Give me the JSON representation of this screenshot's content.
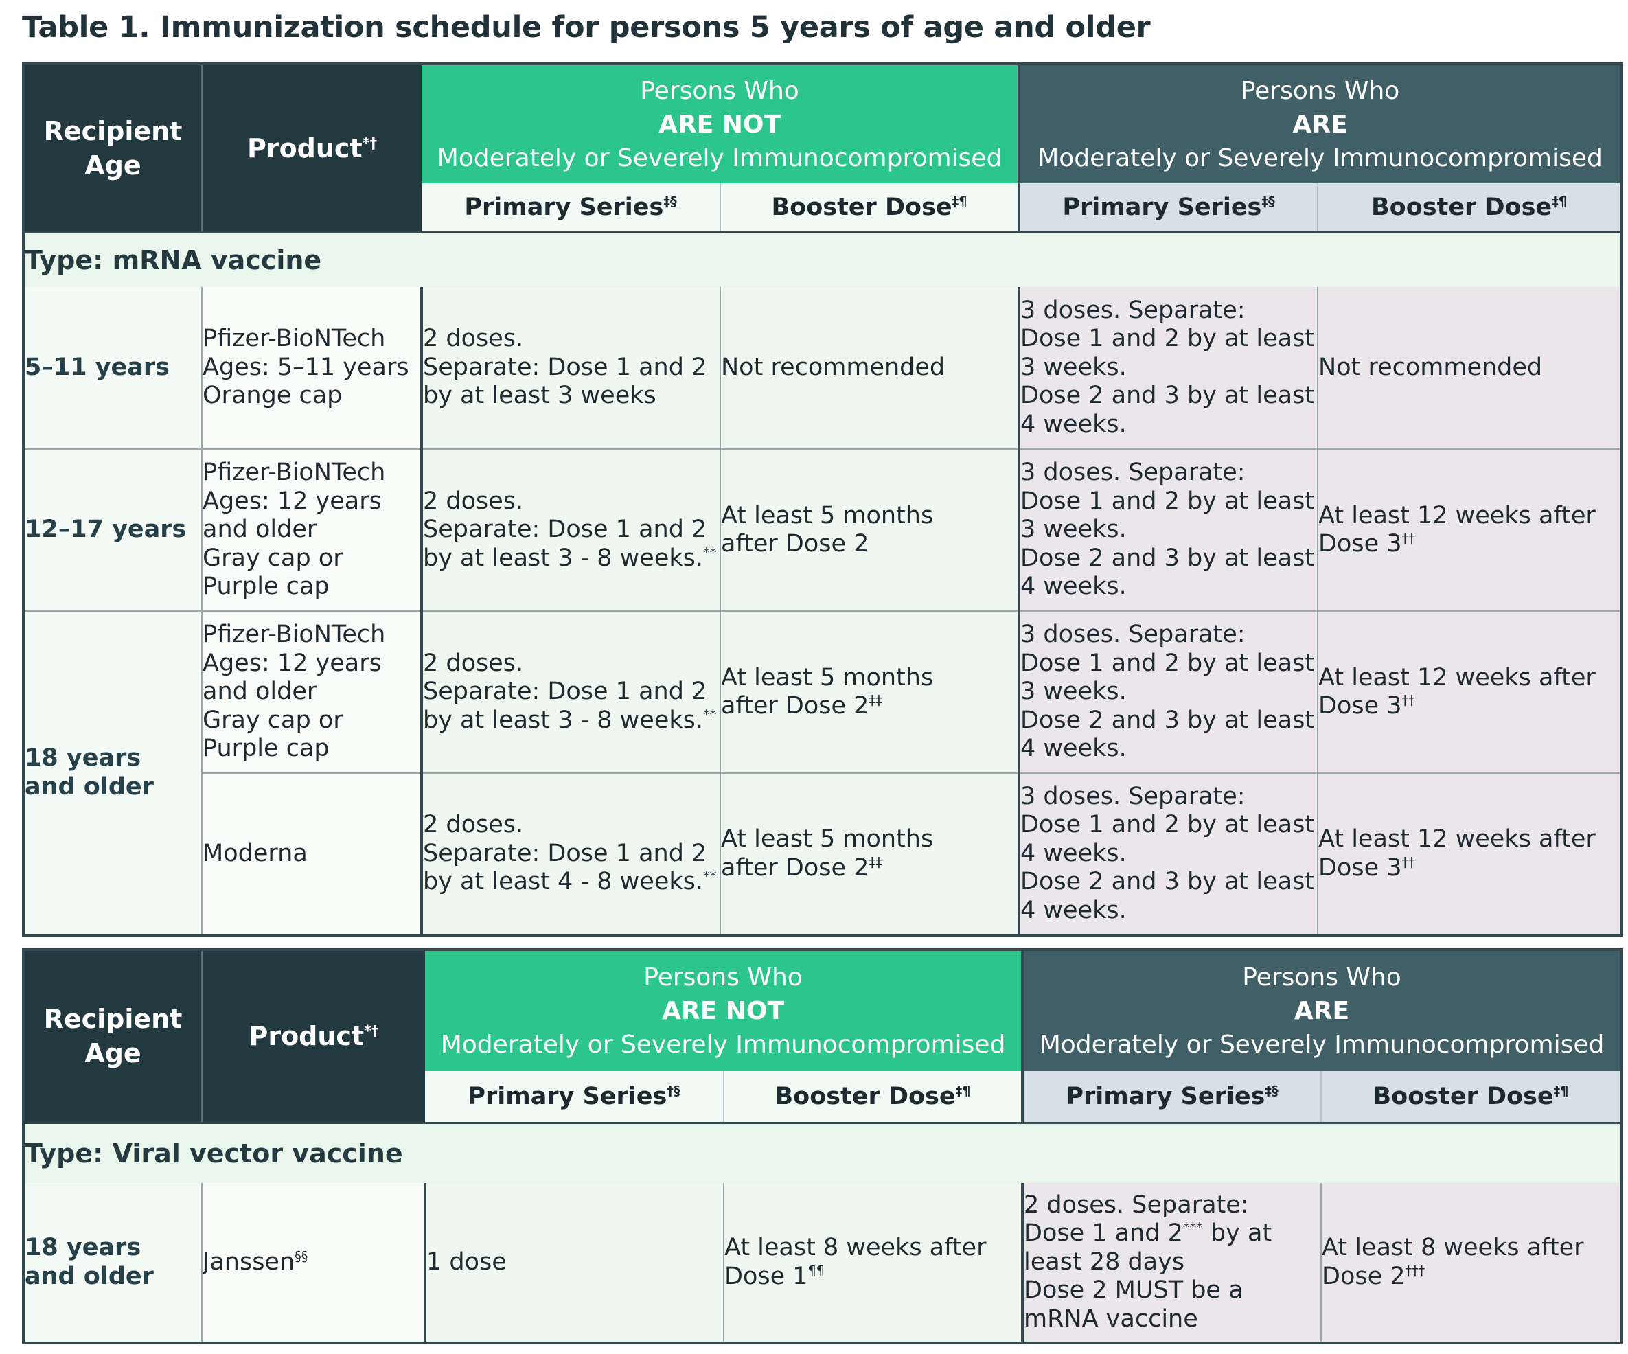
{
  "title": "Table 1. Immunization schedule for persons 5 years of age and older",
  "table1": {
    "header": {
      "age": [
        "Recipient",
        "Age"
      ],
      "product": "Product",
      "product_sup": "*†",
      "not_group": [
        "Persons Who",
        "ARE NOT",
        "Moderately or Severely Immunocompromised"
      ],
      "are_group": [
        "Persons Who",
        "ARE",
        "Moderately or Severely Immunocompromised"
      ],
      "primary": "Primary Series",
      "primary_sup": "‡§",
      "booster": "Booster Dose",
      "booster_sup": "‡¶"
    },
    "type_label": "Type: mRNA vaccine",
    "rows": [
      {
        "age": [
          "5–11 years"
        ],
        "product": [
          "Pfizer-BioNTech",
          "Ages: 5–11 years",
          "Orange cap"
        ],
        "not_primary": [
          "2 doses.",
          "Separate: Dose 1 and 2",
          "by at least 3 weeks"
        ],
        "not_booster": [
          "Not recommended"
        ],
        "are_primary": [
          "3 doses. Separate:",
          "Dose 1 and 2 by at least",
          "3 weeks.",
          "Dose 2 and 3 by at least",
          "4 weeks."
        ],
        "are_booster": [
          "Not recommended"
        ]
      },
      {
        "age": [
          "12–17 years"
        ],
        "product": [
          "Pfizer-BioNTech",
          "Ages: 12 years",
          "and older",
          "Gray cap or",
          "Purple cap"
        ],
        "not_primary": [
          "2 doses.",
          "Separate: Dose 1 and 2",
          "by at least 3 - 8 weeks."
        ],
        "not_primary_sup": "**",
        "not_booster": [
          "At least 5 months",
          "after Dose 2"
        ],
        "are_primary": [
          "3 doses. Separate:",
          "Dose 1 and 2 by at least",
          "3 weeks.",
          "Dose 2 and 3 by at least",
          "4 weeks."
        ],
        "are_booster": [
          "At least 12 weeks after",
          "Dose 3"
        ],
        "are_booster_sup": "††"
      },
      {
        "age": [
          "18 years",
          "and older"
        ],
        "product": [
          "Pfizer-BioNTech",
          "Ages: 12 years",
          "and older",
          "Gray cap or",
          "Purple cap"
        ],
        "not_primary": [
          "2 doses.",
          "Separate: Dose 1 and 2",
          "by at least 3 - 8 weeks."
        ],
        "not_primary_sup": "**",
        "not_booster": [
          "At least 5 months",
          "after Dose 2"
        ],
        "not_booster_sup": "‡‡",
        "are_primary": [
          "3 doses. Separate:",
          "Dose 1 and 2 by at least",
          "3 weeks.",
          "Dose 2 and 3 by at least",
          "4 weeks."
        ],
        "are_booster": [
          "At least 12 weeks after",
          "Dose 3"
        ],
        "are_booster_sup": "††"
      },
      {
        "product": [
          "Moderna"
        ],
        "not_primary": [
          "2 doses.",
          "Separate: Dose 1 and 2",
          "by at least 4 - 8 weeks."
        ],
        "not_primary_sup": "**",
        "not_booster": [
          "At least 5 months",
          "after Dose 2"
        ],
        "not_booster_sup": "‡‡",
        "are_primary": [
          "3 doses. Separate:",
          "Dose 1 and 2 by at least",
          "4 weeks.",
          "Dose 2 and 3 by at least",
          "4 weeks."
        ],
        "are_booster": [
          "At least 12 weeks after",
          "Dose 3"
        ],
        "are_booster_sup": "††"
      }
    ]
  },
  "table2": {
    "header": {
      "age": [
        "Recipient",
        "Age"
      ],
      "product": "Product",
      "product_sup": "*†",
      "not_group": [
        "Persons Who",
        "ARE NOT",
        "Moderately or Severely Immunocompromised"
      ],
      "are_group": [
        "Persons Who",
        "ARE",
        "Moderately or Severely Immunocompromised"
      ],
      "primary_not": "Primary Series",
      "primary_not_sup": "†§",
      "primary_are": "Primary Series",
      "primary_are_sup": "‡§",
      "booster": "Booster Dose",
      "booster_sup": "‡¶"
    },
    "type_label": "Type: Viral vector vaccine",
    "row": {
      "age": [
        "18 years",
        "and older"
      ],
      "product": "Janssen",
      "product_sup": "§§",
      "not_primary": "1 dose",
      "not_booster": [
        "At least 8 weeks after",
        "Dose 1"
      ],
      "not_booster_sup": "¶¶",
      "are_primary_l1": "2 doses. Separate:",
      "are_primary_l2a": "Dose 1 and 2",
      "are_primary_l2sup": "***",
      "are_primary_l2b": " by at",
      "are_primary_rest": [
        "least 28 days",
        "Dose 2 MUST be a",
        "mRNA vaccine"
      ],
      "are_booster": [
        "At least 8 weeks after",
        "Dose 2"
      ],
      "are_booster_sup": "†††"
    }
  }
}
